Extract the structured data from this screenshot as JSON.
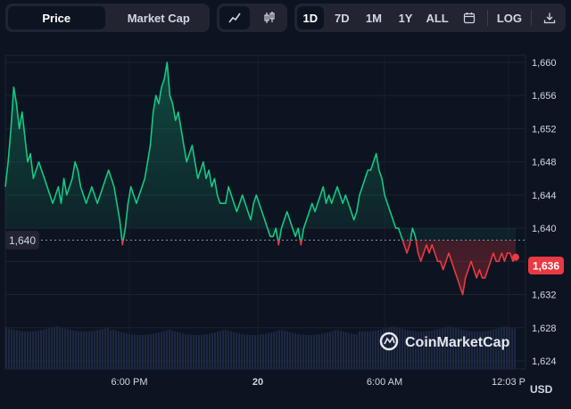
{
  "toolbar": {
    "price_label": "Price",
    "market_cap_label": "Market Cap",
    "ranges": [
      "1D",
      "7D",
      "1M",
      "1Y",
      "ALL"
    ],
    "active_range": "1D",
    "log_label": "LOG"
  },
  "icons": {
    "line_chart": "line-chart-icon",
    "candlestick": "candlestick-icon",
    "calendar": "calendar-icon",
    "download": "download-icon"
  },
  "colors": {
    "up": "#16c784",
    "down": "#ea3943",
    "background": "#0d1421"
  },
  "chart_data": {
    "type": "line",
    "y_ticks": [
      "1,660",
      "1,656",
      "1,652",
      "1,648",
      "1,644",
      "1,640",
      "1,636",
      "1,632",
      "1,628",
      "1,624"
    ],
    "x_ticks": [
      "6:00 PM",
      "20",
      "6:00 AM",
      "12:03 P"
    ],
    "currency": "USD",
    "ylim": [
      1622,
      1664
    ],
    "reference_price": 1640,
    "reference_label": "1,640",
    "current_price_label": "1,636",
    "current_price": 1636.5,
    "watermark": "CoinMarketCap",
    "series": [
      {
        "values": [
          1645,
          1648,
          1652,
          1657,
          1655,
          1652,
          1654,
          1651,
          1648,
          1649,
          1646,
          1647,
          1648,
          1647,
          1646,
          1645,
          1644,
          1643,
          1644,
          1645,
          1643,
          1646,
          1644,
          1645,
          1646,
          1648,
          1647,
          1645,
          1644,
          1643,
          1644,
          1645,
          1644,
          1643,
          1644,
          1645,
          1646,
          1647,
          1646,
          1645,
          1643,
          1641,
          1638,
          1640,
          1643,
          1645,
          1644,
          1643,
          1644,
          1645,
          1646,
          1648,
          1650,
          1654,
          1656,
          1655,
          1657,
          1658,
          1660,
          1656,
          1655,
          1653,
          1654,
          1652,
          1650,
          1648,
          1649,
          1650,
          1648,
          1646,
          1647,
          1648,
          1646,
          1647,
          1645,
          1646,
          1644,
          1643,
          1643,
          1643,
          1645,
          1644,
          1643,
          1642,
          1643,
          1644,
          1643,
          1642,
          1641,
          1643,
          1644,
          1643,
          1642,
          1641,
          1640,
          1639,
          1639,
          1640,
          1638,
          1640,
          1641,
          1642,
          1641,
          1640,
          1639,
          1640,
          1638,
          1640,
          1641,
          1642,
          1643,
          1642,
          1643,
          1644,
          1645,
          1643,
          1644,
          1643,
          1644,
          1645,
          1644,
          1643,
          1644,
          1643,
          1642,
          1641,
          1642,
          1644,
          1645,
          1646,
          1647,
          1647,
          1648,
          1649,
          1647,
          1646,
          1644,
          1643,
          1642,
          1641,
          1640,
          1640,
          1639,
          1638,
          1637,
          1638,
          1640,
          1639,
          1637,
          1636,
          1637,
          1638,
          1637,
          1638,
          1637,
          1636,
          1636,
          1635,
          1636,
          1637,
          1636,
          1635,
          1634,
          1633,
          1632,
          1634,
          1635,
          1636,
          1635,
          1634,
          1635,
          1634,
          1634,
          1635,
          1636,
          1637,
          1636,
          1636,
          1637,
          1636,
          1637,
          1637,
          1636,
          1636.5
        ]
      }
    ]
  }
}
